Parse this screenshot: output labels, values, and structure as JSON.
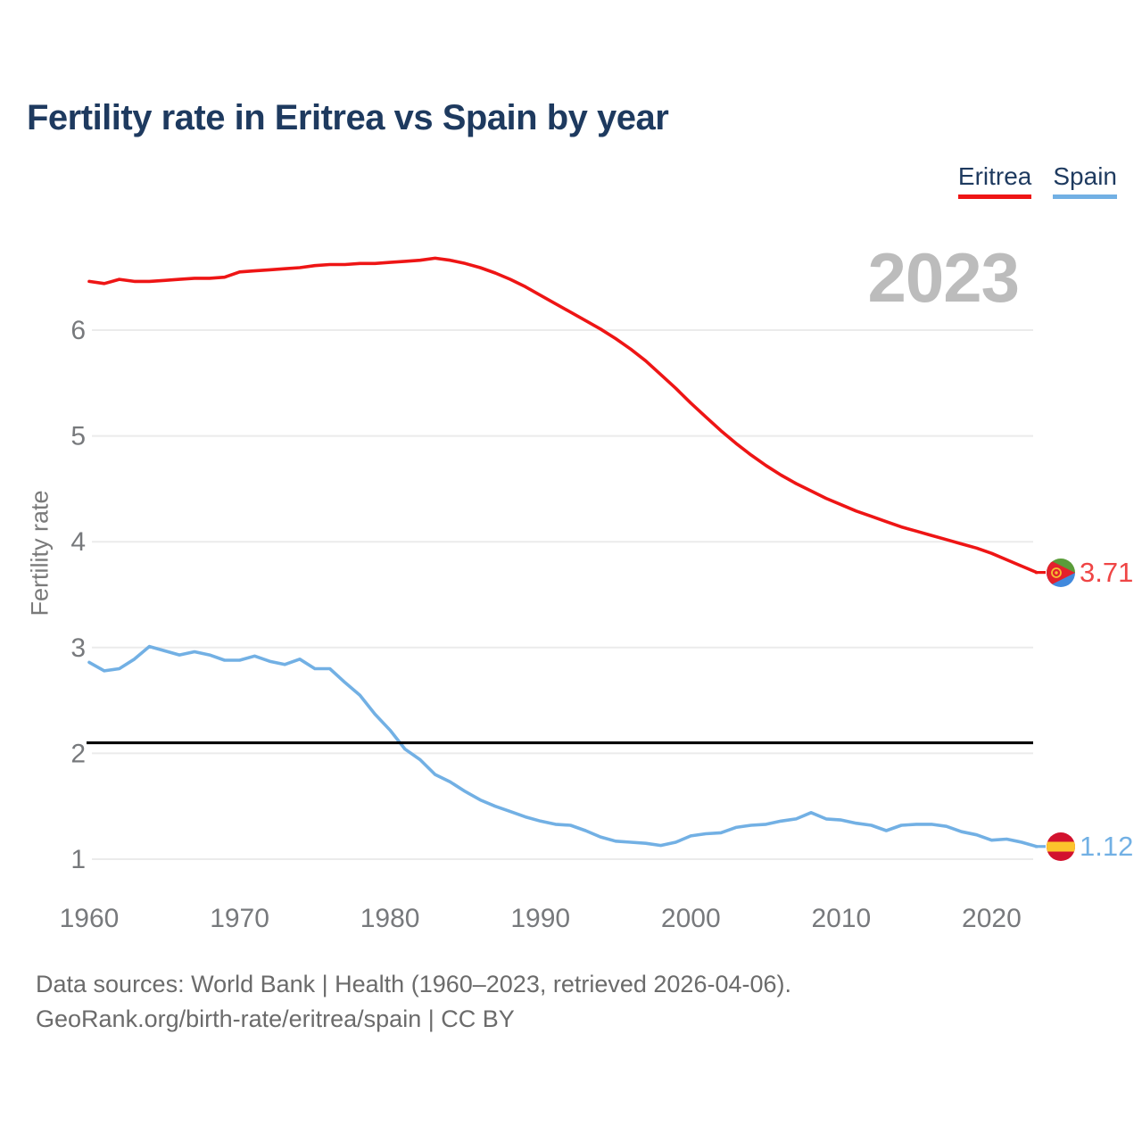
{
  "title": "Fertility rate in Eritrea vs Spain by year",
  "watermark_year": "2023",
  "legend": [
    {
      "label": "Eritrea",
      "color": "#ee1515"
    },
    {
      "label": "Spain",
      "color": "#72b0e4"
    }
  ],
  "footer": {
    "line1": "Data sources: World Bank | Health (1960–2023, retrieved 2026-04-06).",
    "line2": "GeoRank.org/birth-rate/eritrea/spain | CC BY"
  },
  "chart_data": {
    "type": "line",
    "title": "Fertility rate in Eritrea vs Spain by year",
    "xlabel": "",
    "ylabel": "Fertility rate",
    "xlim": [
      1960,
      2023
    ],
    "ylim": [
      0.6,
      6.9
    ],
    "x_ticks": [
      1960,
      1970,
      1980,
      1990,
      2000,
      2010,
      2020
    ],
    "y_ticks": [
      1,
      2,
      3,
      4,
      5,
      6
    ],
    "grid": "horizontal",
    "legend_position": "top-right",
    "reference_line": {
      "value": 2.1,
      "color": "#000000"
    },
    "x": [
      1960,
      1961,
      1962,
      1963,
      1964,
      1965,
      1966,
      1967,
      1968,
      1969,
      1970,
      1971,
      1972,
      1973,
      1974,
      1975,
      1976,
      1977,
      1978,
      1979,
      1980,
      1981,
      1982,
      1983,
      1984,
      1985,
      1986,
      1987,
      1988,
      1989,
      1990,
      1991,
      1992,
      1993,
      1994,
      1995,
      1996,
      1997,
      1998,
      1999,
      2000,
      2001,
      2002,
      2003,
      2004,
      2005,
      2006,
      2007,
      2008,
      2009,
      2010,
      2011,
      2012,
      2013,
      2014,
      2015,
      2016,
      2017,
      2018,
      2019,
      2020,
      2021,
      2022,
      2023
    ],
    "series": [
      {
        "name": "Eritrea",
        "color": "#ee1515",
        "end_label": "3.71",
        "end_label_color": "#ef4545",
        "values": [
          6.46,
          6.44,
          6.48,
          6.46,
          6.46,
          6.47,
          6.48,
          6.49,
          6.49,
          6.5,
          6.55,
          6.56,
          6.57,
          6.58,
          6.59,
          6.61,
          6.62,
          6.62,
          6.63,
          6.63,
          6.64,
          6.65,
          6.66,
          6.68,
          6.66,
          6.63,
          6.59,
          6.54,
          6.48,
          6.41,
          6.33,
          6.25,
          6.17,
          6.09,
          6.01,
          5.92,
          5.82,
          5.71,
          5.58,
          5.45,
          5.31,
          5.18,
          5.05,
          4.93,
          4.82,
          4.72,
          4.63,
          4.55,
          4.48,
          4.41,
          4.35,
          4.29,
          4.24,
          4.19,
          4.14,
          4.1,
          4.06,
          4.02,
          3.98,
          3.94,
          3.89,
          3.83,
          3.77,
          3.71
        ]
      },
      {
        "name": "Spain",
        "color": "#72b0e4",
        "end_label": "1.12",
        "end_label_color": "#72b0e4",
        "values": [
          2.86,
          2.78,
          2.8,
          2.89,
          3.01,
          2.97,
          2.93,
          2.96,
          2.93,
          2.88,
          2.88,
          2.92,
          2.87,
          2.84,
          2.89,
          2.8,
          2.8,
          2.67,
          2.55,
          2.37,
          2.22,
          2.04,
          1.94,
          1.8,
          1.73,
          1.64,
          1.56,
          1.5,
          1.45,
          1.4,
          1.36,
          1.33,
          1.32,
          1.27,
          1.21,
          1.17,
          1.16,
          1.15,
          1.13,
          1.16,
          1.22,
          1.24,
          1.25,
          1.3,
          1.32,
          1.33,
          1.36,
          1.38,
          1.44,
          1.38,
          1.37,
          1.34,
          1.32,
          1.27,
          1.32,
          1.33,
          1.33,
          1.31,
          1.26,
          1.23,
          1.18,
          1.19,
          1.16,
          1.12
        ]
      }
    ]
  }
}
